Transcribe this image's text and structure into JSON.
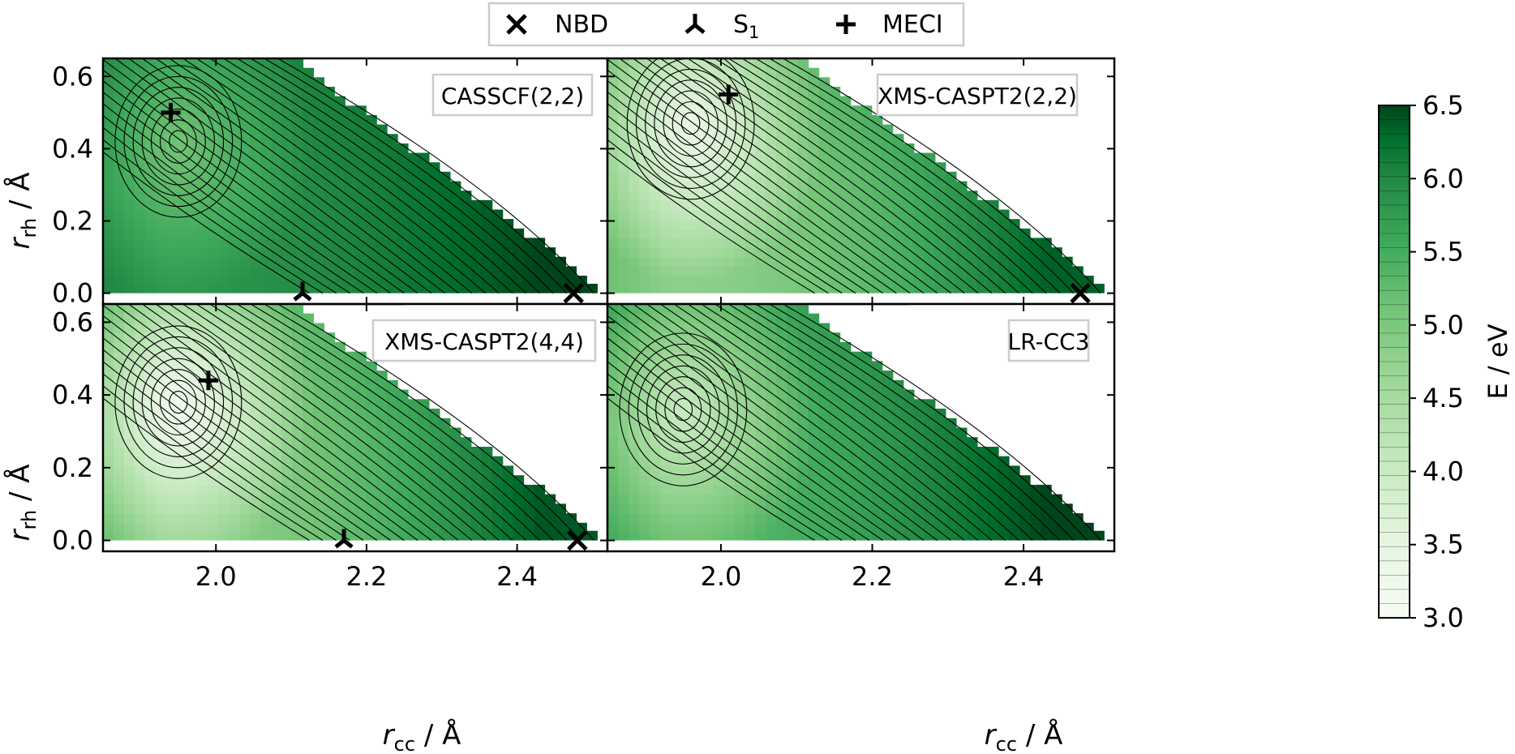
{
  "legend": {
    "placement": "top-center",
    "items": [
      {
        "label": "NBD",
        "marker": "x"
      },
      {
        "label": "S",
        "sub": "1",
        "marker": "tri_down"
      },
      {
        "label": "MECI",
        "marker": "plus"
      }
    ]
  },
  "axes_text": {
    "xlabel_main": "r",
    "xlabel_sub": "cc",
    "xlabel_unit": " / Å",
    "ylabel_main": "r",
    "ylabel_sub": "rh",
    "ylabel_unit": " / Å"
  },
  "colorbar": {
    "label": "E / eV",
    "range": [
      3.0,
      6.5
    ],
    "ticks": [
      "3.0",
      "3.5",
      "4.0",
      "4.5",
      "5.0",
      "5.5",
      "6.0",
      "6.5"
    ],
    "colormap": "Greens",
    "low_color": "#f7fcf5",
    "high_color": "#00441b"
  },
  "chart_data": [
    {
      "type": "heatmap",
      "title": "CASSCF(2,2)",
      "xlim": [
        1.85,
        2.52
      ],
      "ylim": [
        -0.03,
        0.65
      ],
      "xticks": [
        "2.0",
        "2.2",
        "2.4"
      ],
      "yticks": [
        "0.0",
        "0.2",
        "0.4",
        "0.6"
      ],
      "show_xticklabels": false,
      "show_yticklabels": true,
      "grid": false,
      "energy_range": [
        4.7,
        6.5
      ],
      "minima": [
        {
          "x": 1.95,
          "y": 0.42,
          "E": 4.7
        }
      ],
      "markers": [
        {
          "name": "MECI",
          "x": 1.94,
          "y": 0.5
        },
        {
          "name": "S1",
          "x": 2.115,
          "y": 0.0
        },
        {
          "name": "NBD",
          "x": 2.475,
          "y": 0.0
        }
      ]
    },
    {
      "type": "heatmap",
      "title": "XMS-CASPT2(2,2)",
      "xlim": [
        1.85,
        2.52
      ],
      "ylim": [
        -0.03,
        0.65
      ],
      "xticks": [
        "2.0",
        "2.2",
        "2.4"
      ],
      "yticks": [
        "0.0",
        "0.2",
        "0.4",
        "0.6"
      ],
      "show_xticklabels": false,
      "show_yticklabels": false,
      "grid": false,
      "energy_range": [
        3.2,
        6.2
      ],
      "minima": [
        {
          "x": 1.96,
          "y": 0.47,
          "E": 3.2
        }
      ],
      "markers": [
        {
          "name": "MECI",
          "x": 2.01,
          "y": 0.55
        },
        {
          "name": "NBD",
          "x": 2.475,
          "y": 0.0
        }
      ]
    },
    {
      "type": "heatmap",
      "title": "XMS-CASPT2(4,4)",
      "xlim": [
        1.85,
        2.52
      ],
      "ylim": [
        -0.03,
        0.65
      ],
      "xticks": [
        "2.0",
        "2.2",
        "2.4"
      ],
      "yticks": [
        "0.0",
        "0.2",
        "0.4",
        "0.6"
      ],
      "show_xticklabels": true,
      "show_yticklabels": true,
      "grid": false,
      "energy_range": [
        3.1,
        6.3
      ],
      "minima": [
        {
          "x": 1.95,
          "y": 0.38,
          "E": 3.1
        }
      ],
      "markers": [
        {
          "name": "MECI",
          "x": 1.99,
          "y": 0.44
        },
        {
          "name": "S1",
          "x": 2.17,
          "y": 0.0
        },
        {
          "name": "NBD",
          "x": 2.48,
          "y": 0.0
        }
      ]
    },
    {
      "type": "heatmap",
      "title": "LR-CC3",
      "xlim": [
        1.85,
        2.52
      ],
      "ylim": [
        -0.03,
        0.65
      ],
      "xticks": [
        "2.0",
        "2.2",
        "2.4"
      ],
      "yticks": [
        "0.0",
        "0.2",
        "0.4",
        "0.6"
      ],
      "show_xticklabels": true,
      "show_yticklabels": false,
      "grid": false,
      "energy_range": [
        3.8,
        6.5
      ],
      "minima": [
        {
          "x": 1.95,
          "y": 0.36,
          "E": 3.8
        }
      ],
      "markers": []
    }
  ]
}
